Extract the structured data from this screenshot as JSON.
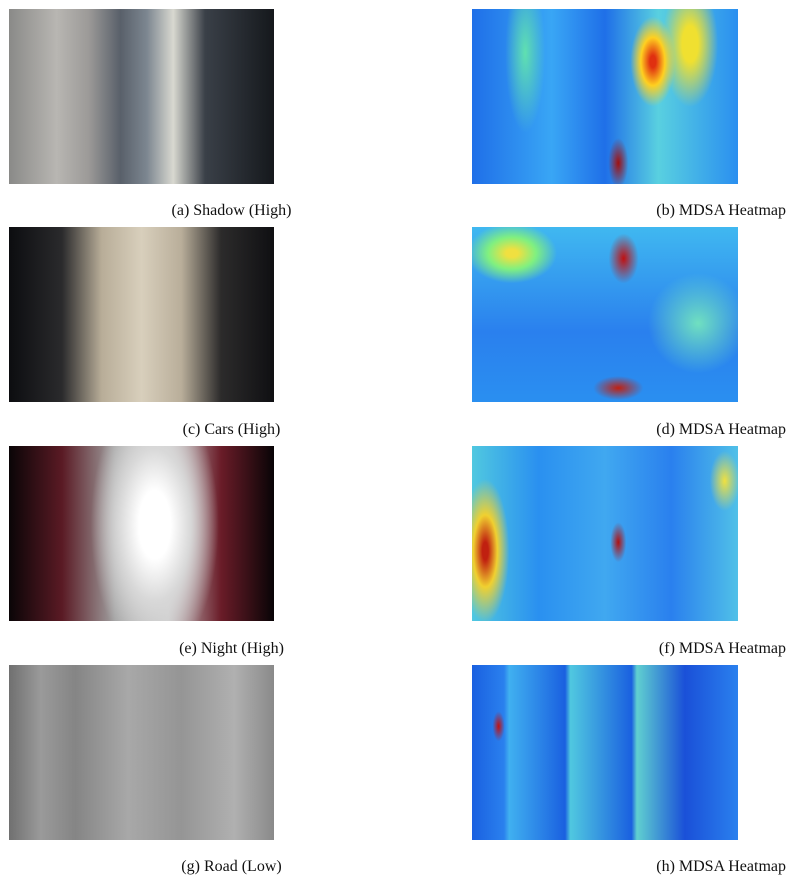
{
  "figure": {
    "panels": [
      {
        "caption": "(a) Shadow (High)"
      },
      {
        "caption": "(b) MDSA Heatmap"
      },
      {
        "caption": "(c) Cars (High)"
      },
      {
        "caption": "(d) MDSA Heatmap"
      },
      {
        "caption": "(e) Night (High)"
      },
      {
        "caption": "(f) MDSA Heatmap"
      },
      {
        "caption": "(g) Road (Low)"
      },
      {
        "caption": "(h) MDSA Heatmap"
      }
    ]
  }
}
